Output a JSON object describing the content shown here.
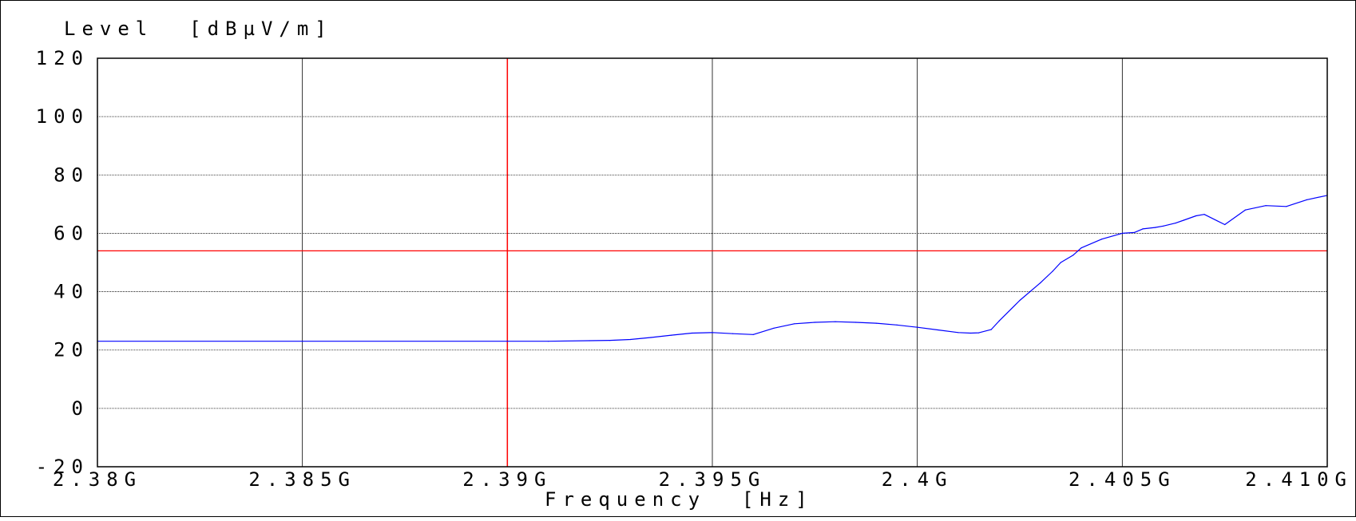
{
  "chart_data": {
    "type": "line",
    "ylabel": "Level  [dBµV/m]",
    "xlabel": "Frequency  [Hz]",
    "xlim": [
      2.38,
      2.41
    ],
    "ylim": [
      -20,
      120
    ],
    "y_ticks": [
      -20,
      0,
      20,
      40,
      60,
      80,
      100,
      120
    ],
    "y_tick_labels": [
      "-20",
      "0",
      "20",
      "40",
      "60",
      "80",
      "100",
      "120"
    ],
    "x_ticks": [
      2.38,
      2.385,
      2.39,
      2.395,
      2.4,
      2.405,
      2.41
    ],
    "x_tick_labels": [
      "2.38G",
      "2.385G",
      "2.39G",
      "2.395G",
      "2.4G",
      "2.405G",
      "2.410G"
    ],
    "grid": true,
    "limit_line_y": 54,
    "marker_line_x": 2.39,
    "colors": {
      "trace": "#0000ff",
      "limit": "#ff0000",
      "marker": "#ff0000",
      "grid": "#000000"
    },
    "series": [
      {
        "x": [
          2.38,
          2.385,
          2.39,
          2.391,
          2.392,
          2.3925,
          2.393,
          2.3935,
          2.394,
          2.3945,
          2.395,
          2.3955,
          2.396,
          2.3965,
          2.397,
          2.3975,
          2.398,
          2.3985,
          2.399,
          2.3995,
          2.4,
          2.4005,
          2.401,
          2.4013,
          2.4015,
          2.4018,
          2.402,
          2.4025,
          2.403,
          2.4033,
          2.4035,
          2.4038,
          2.404,
          2.4045,
          2.405,
          2.4053,
          2.4055,
          2.4058,
          2.406,
          2.4063,
          2.4065,
          2.4068,
          2.407,
          2.4075,
          2.408,
          2.4085,
          2.409,
          2.4095,
          2.41
        ],
        "y": [
          23,
          23,
          23,
          23,
          23.2,
          23.3,
          23.6,
          24.3,
          25.1,
          25.8,
          26,
          25.6,
          25.3,
          27.5,
          29,
          29.5,
          29.7,
          29.5,
          29.2,
          28.6,
          27.8,
          26.9,
          26,
          25.8,
          25.9,
          27,
          30,
          37,
          43,
          47,
          50,
          52.5,
          55,
          58,
          60,
          60.3,
          61.5,
          62,
          62.5,
          63.5,
          64.5,
          66,
          66.5,
          63,
          68,
          69.5,
          69.2,
          71.5,
          73
        ]
      }
    ]
  }
}
